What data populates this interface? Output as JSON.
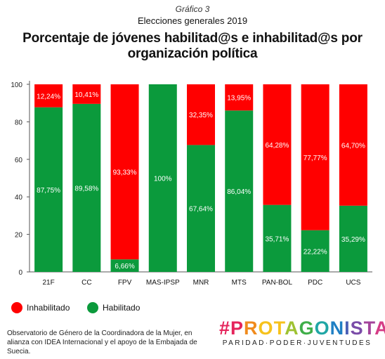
{
  "header": {
    "figure_label": "Gráfico 3",
    "subtitle": "Elecciones generales 2019",
    "title": "Porcentaje de jóvenes habilitad@s e inhabilitad@s por organización política"
  },
  "colors": {
    "inhabilitado": "#ff0000",
    "habilitado": "#0b9a3c",
    "axis": "#555555",
    "background": "#ffffff"
  },
  "legend": {
    "inhabilitado": "Inhabilitado",
    "habilitado": "Habilitado"
  },
  "chart_data": {
    "type": "bar",
    "stacked": true,
    "categories": [
      "21F",
      "CC",
      "FPV",
      "MAS-IPSP",
      "MNR",
      "MTS",
      "PAN-BOL",
      "PDC",
      "UCS"
    ],
    "series": [
      {
        "name": "Habilitado",
        "values": [
          87.75,
          89.58,
          6.66,
          100,
          67.64,
          86.04,
          35.71,
          22.22,
          35.29
        ],
        "labels": [
          "87,75%",
          "89,58%",
          "6,66%",
          "100%",
          "67,64%",
          "86,04%",
          "35,71%",
          "22,22%",
          "35,29%"
        ]
      },
      {
        "name": "Inhabilitado",
        "values": [
          12.24,
          10.41,
          93.33,
          0,
          32.35,
          13.95,
          64.28,
          77.77,
          64.7
        ],
        "labels": [
          "12,24%",
          "10,41%",
          "93,33%",
          "",
          "32,35%",
          "13,95%",
          "64,28%",
          "77,77%",
          "64,70%"
        ]
      }
    ],
    "yticks": [
      "0",
      "20",
      "40",
      "60",
      "80",
      "100"
    ],
    "ylim": [
      0,
      100
    ],
    "grid": false,
    "legend_position": "bottom-left"
  },
  "footer": {
    "note": "Observatorio de Género de la Coordinadora de la Mujer, en alianza con IDEA Internacional y el apoyo de la Embajada de Suecia.",
    "brand_name": "#PROTAGONISTAS",
    "brand_tagline": "PARIDAD·PODER·JUVENTUDES"
  }
}
